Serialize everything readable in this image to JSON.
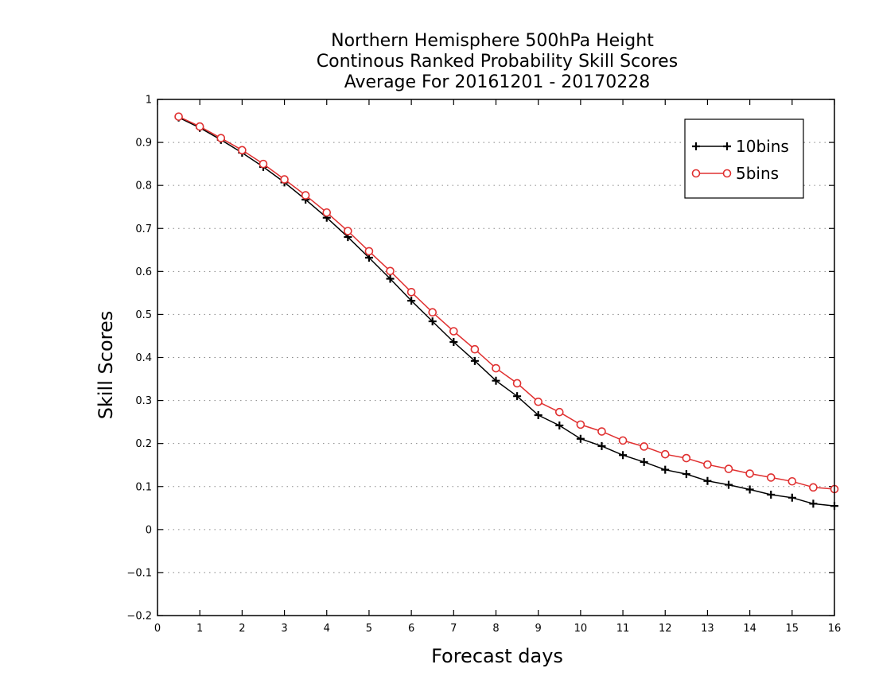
{
  "chart_data": {
    "type": "line",
    "title_lines": [
      "Northern Hemisphere 500hPa Height",
      "Continous Ranked Probability Skill Scores",
      "Average For 20161201 - 20170228"
    ],
    "xlabel": "Forecast days",
    "ylabel": "Skill Scores",
    "xlim": [
      0,
      16
    ],
    "ylim": [
      -0.2,
      1
    ],
    "xticks": [
      "0",
      "1",
      "2",
      "3",
      "4",
      "5",
      "6",
      "7",
      "8",
      "9",
      "10",
      "11",
      "12",
      "13",
      "14",
      "15",
      "16"
    ],
    "yticks": [
      "-0.2",
      "-0.1",
      "0",
      "0.1",
      "0.2",
      "0.3",
      "0.4",
      "0.5",
      "0.6",
      "0.7",
      "0.8",
      "0.9",
      "1"
    ],
    "grid": "horizontal-dotted",
    "legend_position": "top-right",
    "x": [
      0.5,
      1,
      1.5,
      2,
      2.5,
      3,
      3.5,
      4,
      4.5,
      5,
      5.5,
      6,
      6.5,
      7,
      7.5,
      8,
      8.5,
      9,
      9.5,
      10,
      10.5,
      11,
      11.5,
      12,
      12.5,
      13,
      13.5,
      14,
      14.5,
      15,
      15.5,
      16
    ],
    "series": [
      {
        "name": "10bins",
        "color": "#000000",
        "marker": "plus",
        "values": [
          0.958,
          0.934,
          0.906,
          0.876,
          0.843,
          0.807,
          0.767,
          0.725,
          0.68,
          0.632,
          0.583,
          0.532,
          0.484,
          0.436,
          0.392,
          0.346,
          0.31,
          0.266,
          0.242,
          0.211,
          0.194,
          0.173,
          0.157,
          0.139,
          0.129,
          0.113,
          0.104,
          0.093,
          0.081,
          0.074,
          0.06,
          0.055
        ]
      },
      {
        "name": "5bins",
        "color": "#e03030",
        "marker": "circle",
        "values": [
          0.96,
          0.937,
          0.91,
          0.882,
          0.85,
          0.814,
          0.777,
          0.737,
          0.694,
          0.647,
          0.601,
          0.552,
          0.505,
          0.461,
          0.419,
          0.375,
          0.34,
          0.297,
          0.273,
          0.244,
          0.228,
          0.207,
          0.193,
          0.175,
          0.166,
          0.151,
          0.141,
          0.13,
          0.121,
          0.112,
          0.098,
          0.094
        ]
      }
    ]
  }
}
